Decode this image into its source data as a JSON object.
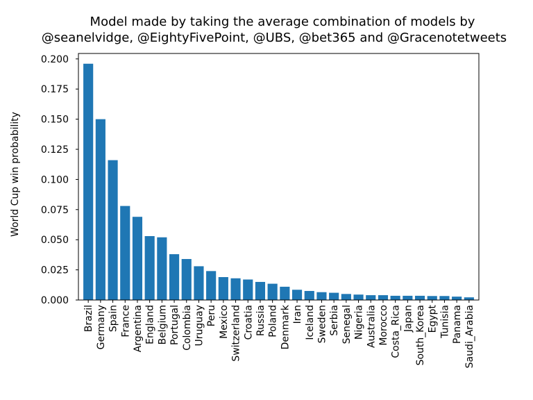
{
  "chart_data": {
    "type": "bar",
    "title_lines": [
      "Model made by taking the average combination of models by",
      "@seanelvidge, @EightyFivePoint, @UBS, @bet365 and @Gracenotetweets"
    ],
    "xlabel": "",
    "ylabel": "World Cup win probability",
    "ylim": [
      0,
      0.2045
    ],
    "yticks": [
      "0.000",
      "0.025",
      "0.050",
      "0.075",
      "0.100",
      "0.125",
      "0.150",
      "0.175",
      "0.200"
    ],
    "grid": false,
    "bar_color": "#1f77b4",
    "categories": [
      "Brazil",
      "Germany",
      "Spain",
      "France",
      "Argentina",
      "England",
      "Belgium",
      "Portugal",
      "Colombia",
      "Uruguay",
      "Peru",
      "Mexico",
      "Switzerland",
      "Croatia",
      "Russia",
      "Poland",
      "Denmark",
      "Iran",
      "Iceland",
      "Sweden",
      "Serbia",
      "Senegal",
      "Nigeria",
      "Australia",
      "Morocco",
      "Costa_Rica",
      "Japan",
      "South_Korea",
      "Egypt",
      "Tunisia",
      "Panama",
      "Saudi_Arabia"
    ],
    "values": [
      0.196,
      0.15,
      0.116,
      0.078,
      0.069,
      0.053,
      0.052,
      0.038,
      0.034,
      0.028,
      0.024,
      0.019,
      0.018,
      0.017,
      0.015,
      0.0135,
      0.011,
      0.0085,
      0.0075,
      0.0065,
      0.006,
      0.005,
      0.0045,
      0.004,
      0.004,
      0.0035,
      0.0035,
      0.0035,
      0.0033,
      0.0033,
      0.0028,
      0.0022
    ]
  }
}
